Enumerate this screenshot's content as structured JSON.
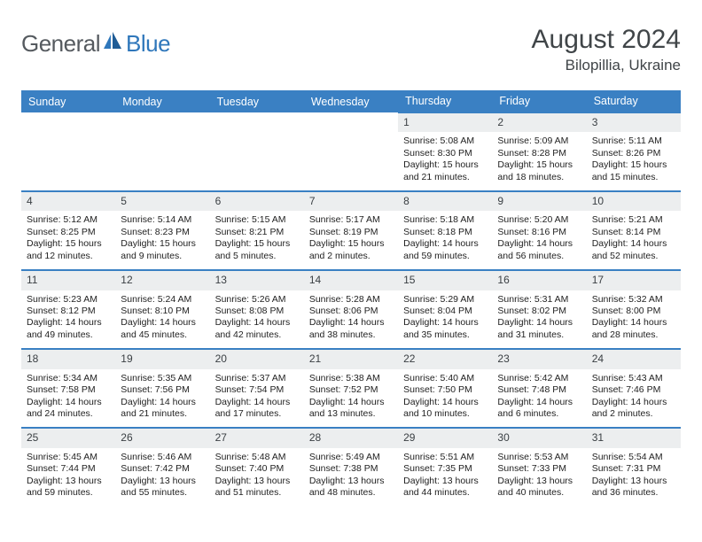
{
  "brand": {
    "word1": "General",
    "word2": "Blue"
  },
  "title": "August 2024",
  "location": "Bilopillia, Ukraine",
  "colors": {
    "header_bg": "#3a80c3",
    "header_fg": "#ffffff",
    "daynum_bg": "#eceeef",
    "row_border": "#3a80c3",
    "text": "#222222",
    "title": "#404548",
    "logo_gray": "#555a5f",
    "logo_blue": "#2f77bb"
  },
  "typography": {
    "title_fontsize": 30,
    "location_fontsize": 17,
    "dayhead_fontsize": 12.5,
    "body_fontsize": 10.5,
    "daynum_fontsize": 12
  },
  "day_headers": [
    "Sunday",
    "Monday",
    "Tuesday",
    "Wednesday",
    "Thursday",
    "Friday",
    "Saturday"
  ],
  "weeks": [
    [
      {
        "blank": true
      },
      {
        "blank": true
      },
      {
        "blank": true
      },
      {
        "blank": true
      },
      {
        "d": "1",
        "sr": "5:08 AM",
        "ss": "8:30 PM",
        "dl": "15 hours and 21 minutes."
      },
      {
        "d": "2",
        "sr": "5:09 AM",
        "ss": "8:28 PM",
        "dl": "15 hours and 18 minutes."
      },
      {
        "d": "3",
        "sr": "5:11 AM",
        "ss": "8:26 PM",
        "dl": "15 hours and 15 minutes."
      }
    ],
    [
      {
        "d": "4",
        "sr": "5:12 AM",
        "ss": "8:25 PM",
        "dl": "15 hours and 12 minutes."
      },
      {
        "d": "5",
        "sr": "5:14 AM",
        "ss": "8:23 PM",
        "dl": "15 hours and 9 minutes."
      },
      {
        "d": "6",
        "sr": "5:15 AM",
        "ss": "8:21 PM",
        "dl": "15 hours and 5 minutes."
      },
      {
        "d": "7",
        "sr": "5:17 AM",
        "ss": "8:19 PM",
        "dl": "15 hours and 2 minutes."
      },
      {
        "d": "8",
        "sr": "5:18 AM",
        "ss": "8:18 PM",
        "dl": "14 hours and 59 minutes."
      },
      {
        "d": "9",
        "sr": "5:20 AM",
        "ss": "8:16 PM",
        "dl": "14 hours and 56 minutes."
      },
      {
        "d": "10",
        "sr": "5:21 AM",
        "ss": "8:14 PM",
        "dl": "14 hours and 52 minutes."
      }
    ],
    [
      {
        "d": "11",
        "sr": "5:23 AM",
        "ss": "8:12 PM",
        "dl": "14 hours and 49 minutes."
      },
      {
        "d": "12",
        "sr": "5:24 AM",
        "ss": "8:10 PM",
        "dl": "14 hours and 45 minutes."
      },
      {
        "d": "13",
        "sr": "5:26 AM",
        "ss": "8:08 PM",
        "dl": "14 hours and 42 minutes."
      },
      {
        "d": "14",
        "sr": "5:28 AM",
        "ss": "8:06 PM",
        "dl": "14 hours and 38 minutes."
      },
      {
        "d": "15",
        "sr": "5:29 AM",
        "ss": "8:04 PM",
        "dl": "14 hours and 35 minutes."
      },
      {
        "d": "16",
        "sr": "5:31 AM",
        "ss": "8:02 PM",
        "dl": "14 hours and 31 minutes."
      },
      {
        "d": "17",
        "sr": "5:32 AM",
        "ss": "8:00 PM",
        "dl": "14 hours and 28 minutes."
      }
    ],
    [
      {
        "d": "18",
        "sr": "5:34 AM",
        "ss": "7:58 PM",
        "dl": "14 hours and 24 minutes."
      },
      {
        "d": "19",
        "sr": "5:35 AM",
        "ss": "7:56 PM",
        "dl": "14 hours and 21 minutes."
      },
      {
        "d": "20",
        "sr": "5:37 AM",
        "ss": "7:54 PM",
        "dl": "14 hours and 17 minutes."
      },
      {
        "d": "21",
        "sr": "5:38 AM",
        "ss": "7:52 PM",
        "dl": "14 hours and 13 minutes."
      },
      {
        "d": "22",
        "sr": "5:40 AM",
        "ss": "7:50 PM",
        "dl": "14 hours and 10 minutes."
      },
      {
        "d": "23",
        "sr": "5:42 AM",
        "ss": "7:48 PM",
        "dl": "14 hours and 6 minutes."
      },
      {
        "d": "24",
        "sr": "5:43 AM",
        "ss": "7:46 PM",
        "dl": "14 hours and 2 minutes."
      }
    ],
    [
      {
        "d": "25",
        "sr": "5:45 AM",
        "ss": "7:44 PM",
        "dl": "13 hours and 59 minutes."
      },
      {
        "d": "26",
        "sr": "5:46 AM",
        "ss": "7:42 PM",
        "dl": "13 hours and 55 minutes."
      },
      {
        "d": "27",
        "sr": "5:48 AM",
        "ss": "7:40 PM",
        "dl": "13 hours and 51 minutes."
      },
      {
        "d": "28",
        "sr": "5:49 AM",
        "ss": "7:38 PM",
        "dl": "13 hours and 48 minutes."
      },
      {
        "d": "29",
        "sr": "5:51 AM",
        "ss": "7:35 PM",
        "dl": "13 hours and 44 minutes."
      },
      {
        "d": "30",
        "sr": "5:53 AM",
        "ss": "7:33 PM",
        "dl": "13 hours and 40 minutes."
      },
      {
        "d": "31",
        "sr": "5:54 AM",
        "ss": "7:31 PM",
        "dl": "13 hours and 36 minutes."
      }
    ]
  ],
  "labels": {
    "sunrise": "Sunrise: ",
    "sunset": "Sunset: ",
    "daylight": "Daylight: "
  }
}
